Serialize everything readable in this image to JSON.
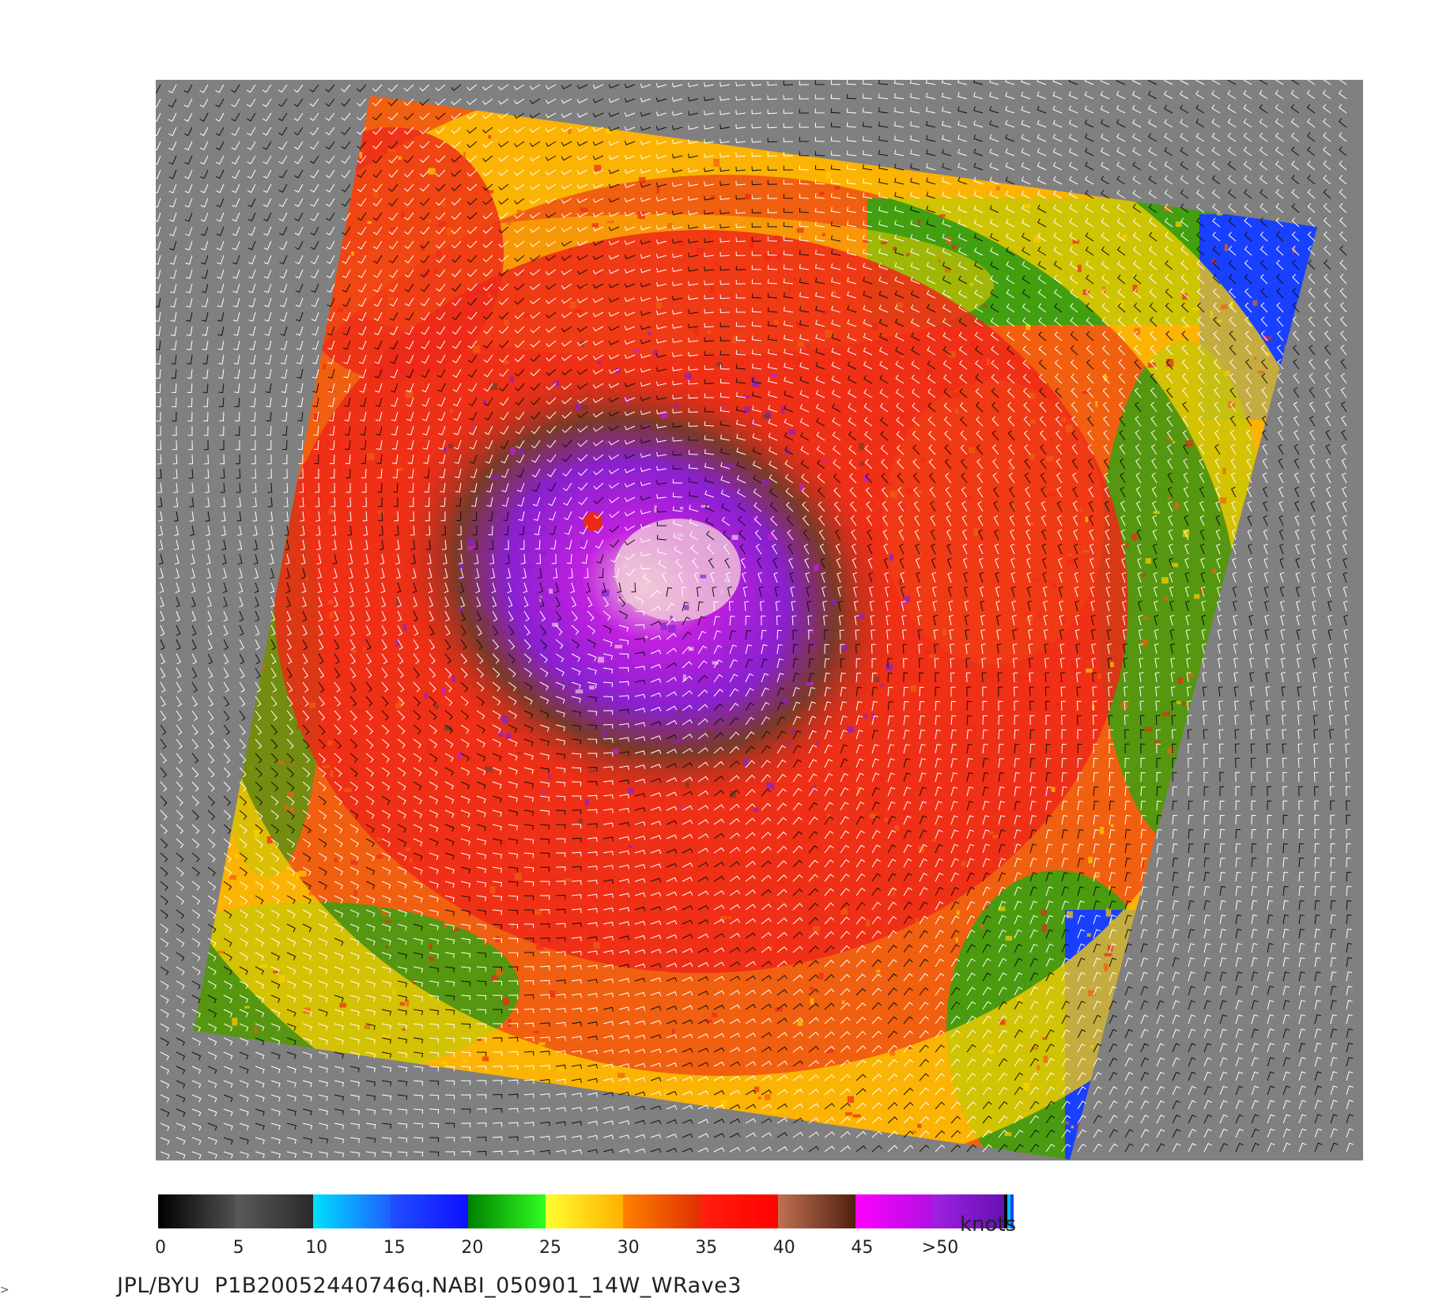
{
  "map": {
    "background_color": "#808080",
    "swath_colors": {
      "calm": "#606060",
      "blue": "#1a40ff",
      "green": "#22aa10",
      "yellow": "#ffd000",
      "orange": "#f06010",
      "red": "#ee2818",
      "brown": "#7a3a28",
      "magenta": "#c020e0",
      "purple": "#8a20d0",
      "eye_pink": "#f0c8d8"
    },
    "vector_colors": [
      "#ffffff",
      "#111111"
    ]
  },
  "colorbar": {
    "segments": [
      {
        "from": "#000000",
        "to": "#505050"
      },
      {
        "from": "#5a5a5a",
        "to": "#2a2a2a"
      },
      {
        "from": "#00e0ff",
        "to": "#1e60ff"
      },
      {
        "from": "#2050ff",
        "to": "#1010ff"
      },
      {
        "from": "#008000",
        "to": "#30ff20"
      },
      {
        "from": "#ffff30",
        "to": "#ffb000"
      },
      {
        "from": "#ff8000",
        "to": "#e03000"
      },
      {
        "from": "#ff2010",
        "to": "#ff0000"
      },
      {
        "from": "#c07050",
        "to": "#502010"
      },
      {
        "from": "#ff00ff",
        "to": "#b010e0"
      },
      {
        "from": "#a020e0",
        "to": "#6010b0"
      }
    ],
    "end_stripes": [
      "#000000",
      "#00c0ff",
      "#2040ff"
    ],
    "ticks": [
      "0",
      "5",
      "10",
      "15",
      "20",
      "25",
      "30",
      "35",
      "40",
      "45",
      ">50"
    ],
    "unit": "knots"
  },
  "caption": "JPL/BYU  P1B20052440746q.NABI_050901_14W_WRave3",
  "stray_mark": ">"
}
